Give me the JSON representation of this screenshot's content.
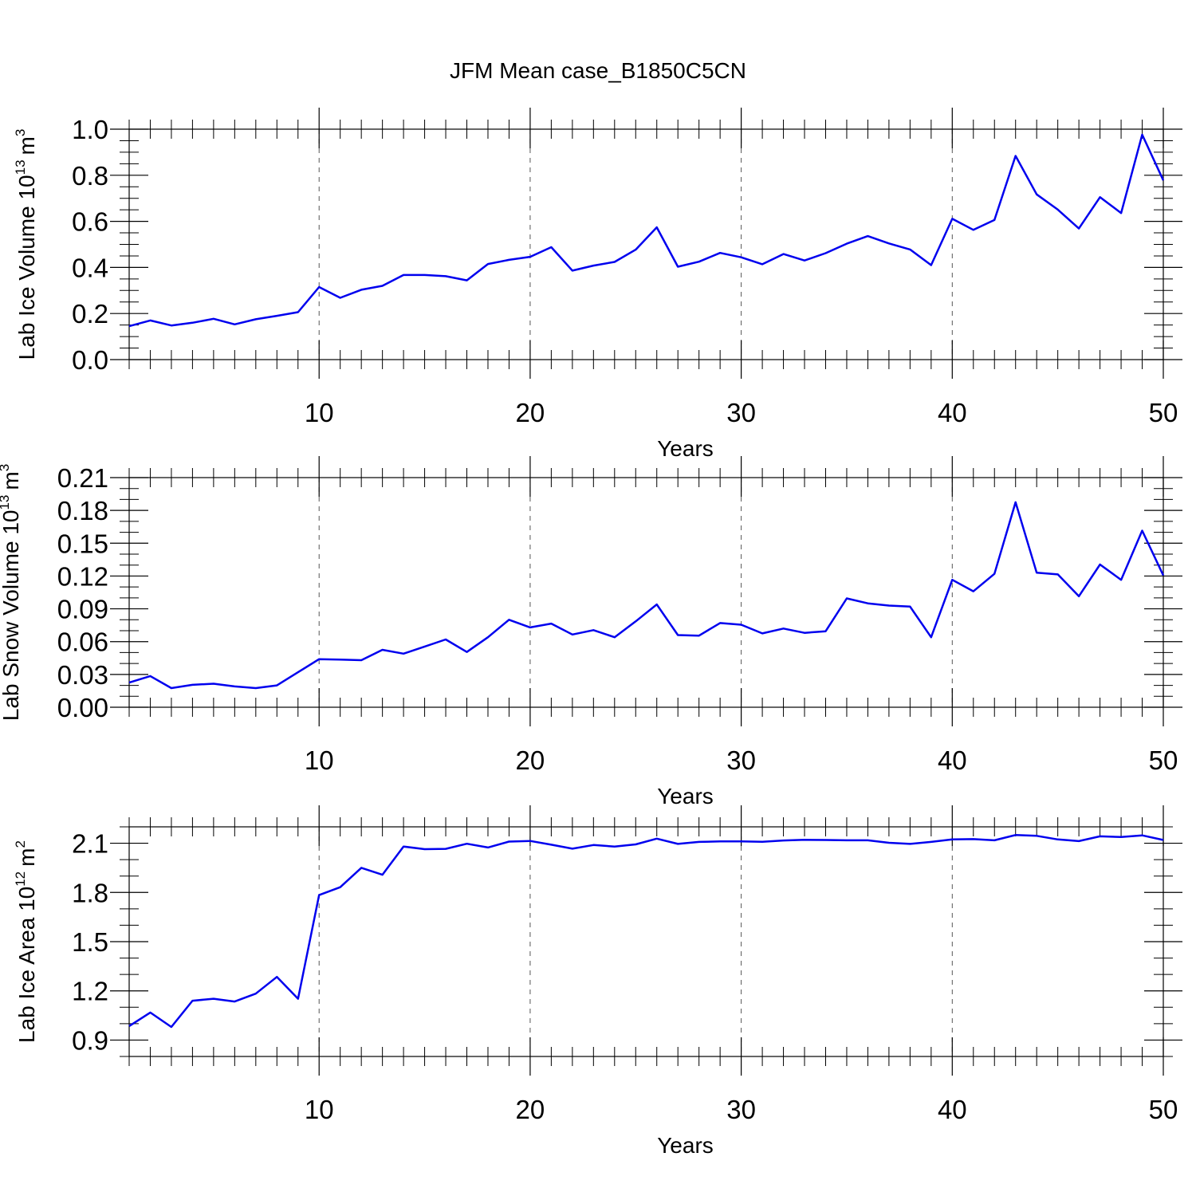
{
  "title": "JFM Mean case_B1850C5CN",
  "chart_data": [
    {
      "type": "line",
      "name": "ice-volume",
      "title": "JFM Mean case_B1850C5CN",
      "xlabel": "Years",
      "ylabel_main": "Lab Ice Volume 10",
      "ylabel_exp": "13",
      "ylabel_unit": "m",
      "ylabel_unit_exp": "3",
      "xlim": [
        1,
        50
      ],
      "ylim": [
        0,
        1.0
      ],
      "x_ticks": [
        10,
        20,
        30,
        40,
        50
      ],
      "x_tick_labels": [
        "10",
        "20",
        "30",
        "40",
        "50"
      ],
      "y_ticks": [
        0,
        0.2,
        0.4,
        0.6,
        0.8,
        1.0
      ],
      "y_tick_labels": [
        "0.0",
        "0.2",
        "0.4",
        "0.6",
        "0.8",
        "1.0"
      ],
      "y_minor_step": 0.05,
      "color": "#0000ee",
      "x": [
        1,
        2,
        3,
        4,
        5,
        6,
        7,
        8,
        9,
        10,
        11,
        12,
        13,
        14,
        15,
        16,
        17,
        18,
        19,
        20,
        21,
        22,
        23,
        24,
        25,
        26,
        27,
        28,
        29,
        30,
        31,
        32,
        33,
        34,
        35,
        36,
        37,
        38,
        39,
        40,
        41,
        42,
        43,
        44,
        45,
        46,
        47,
        48,
        49,
        50
      ],
      "values": [
        0.145,
        0.17,
        0.148,
        0.16,
        0.177,
        0.153,
        0.175,
        0.19,
        0.206,
        0.315,
        0.268,
        0.303,
        0.32,
        0.367,
        0.367,
        0.362,
        0.344,
        0.415,
        0.433,
        0.446,
        0.488,
        0.386,
        0.408,
        0.424,
        0.477,
        0.574,
        0.403,
        0.425,
        0.463,
        0.444,
        0.414,
        0.458,
        0.43,
        0.462,
        0.503,
        0.536,
        0.504,
        0.478,
        0.41,
        0.611,
        0.563,
        0.606,
        0.884,
        0.717,
        0.651,
        0.569,
        0.705,
        0.636,
        0.976,
        0.778
      ]
    },
    {
      "type": "line",
      "name": "snow-volume",
      "xlabel": "Years",
      "ylabel_main": "Lab Snow Volume 10",
      "ylabel_exp": "13",
      "ylabel_unit": "m",
      "ylabel_unit_exp": "3",
      "xlim": [
        1,
        50
      ],
      "ylim": [
        0,
        0.21
      ],
      "x_ticks": [
        10,
        20,
        30,
        40,
        50
      ],
      "x_tick_labels": [
        "10",
        "20",
        "30",
        "40",
        "50"
      ],
      "y_ticks": [
        0,
        0.03,
        0.06,
        0.09,
        0.12,
        0.15,
        0.18,
        0.21
      ],
      "y_tick_labels": [
        "0.00",
        "0.03",
        "0.06",
        "0.09",
        "0.12",
        "0.15",
        "0.18",
        "0.21"
      ],
      "y_minor_step": 0.01,
      "color": "#0000ee",
      "x": [
        1,
        2,
        3,
        4,
        5,
        6,
        7,
        8,
        9,
        10,
        11,
        12,
        13,
        14,
        15,
        16,
        17,
        18,
        19,
        20,
        21,
        22,
        23,
        24,
        25,
        26,
        27,
        28,
        29,
        30,
        31,
        32,
        33,
        34,
        35,
        36,
        37,
        38,
        39,
        40,
        41,
        42,
        43,
        44,
        45,
        46,
        47,
        48,
        49,
        50
      ],
      "values": [
        0.0225,
        0.0285,
        0.0175,
        0.0205,
        0.0215,
        0.019,
        0.0175,
        0.02,
        0.032,
        0.044,
        0.0435,
        0.043,
        0.0525,
        0.049,
        0.0555,
        0.062,
        0.0505,
        0.064,
        0.08,
        0.073,
        0.0765,
        0.0665,
        0.0705,
        0.064,
        0.0785,
        0.094,
        0.066,
        0.0655,
        0.077,
        0.0755,
        0.0675,
        0.072,
        0.068,
        0.0695,
        0.0995,
        0.095,
        0.093,
        0.092,
        0.064,
        0.1165,
        0.106,
        0.122,
        0.1875,
        0.123,
        0.1215,
        0.1015,
        0.1305,
        0.1165,
        0.1615,
        0.1205
      ]
    },
    {
      "type": "line",
      "name": "ice-area",
      "xlabel": "Years",
      "ylabel_main": "Lab Ice Area 10",
      "ylabel_exp": "12",
      "ylabel_unit": "m",
      "ylabel_unit_exp": "2",
      "xlim": [
        1,
        50
      ],
      "ylim": [
        0.8,
        2.2
      ],
      "x_ticks": [
        10,
        20,
        30,
        40,
        50
      ],
      "x_tick_labels": [
        "10",
        "20",
        "30",
        "40",
        "50"
      ],
      "y_ticks": [
        0.9,
        1.2,
        1.5,
        1.8,
        2.1
      ],
      "y_tick_labels": [
        "0.9",
        "1.2",
        "1.5",
        "1.8",
        "2.1"
      ],
      "y_minor_step": 0.1,
      "color": "#0000ee",
      "x": [
        1,
        2,
        3,
        4,
        5,
        6,
        7,
        8,
        9,
        10,
        11,
        12,
        13,
        14,
        15,
        16,
        17,
        18,
        19,
        20,
        21,
        22,
        23,
        24,
        25,
        26,
        27,
        28,
        29,
        30,
        31,
        32,
        33,
        34,
        35,
        36,
        37,
        38,
        39,
        40,
        41,
        42,
        43,
        44,
        45,
        46,
        47,
        48,
        49,
        50
      ],
      "values": [
        0.985,
        1.068,
        0.98,
        1.14,
        1.152,
        1.135,
        1.183,
        1.285,
        1.152,
        1.784,
        1.832,
        1.95,
        1.908,
        2.08,
        2.064,
        2.066,
        2.097,
        2.074,
        2.11,
        2.114,
        2.091,
        2.067,
        2.089,
        2.08,
        2.093,
        2.128,
        2.096,
        2.108,
        2.111,
        2.111,
        2.109,
        2.117,
        2.121,
        2.12,
        2.118,
        2.118,
        2.103,
        2.096,
        2.108,
        2.123,
        2.125,
        2.118,
        2.15,
        2.145,
        2.123,
        2.113,
        2.142,
        2.138,
        2.148,
        2.12
      ]
    }
  ]
}
